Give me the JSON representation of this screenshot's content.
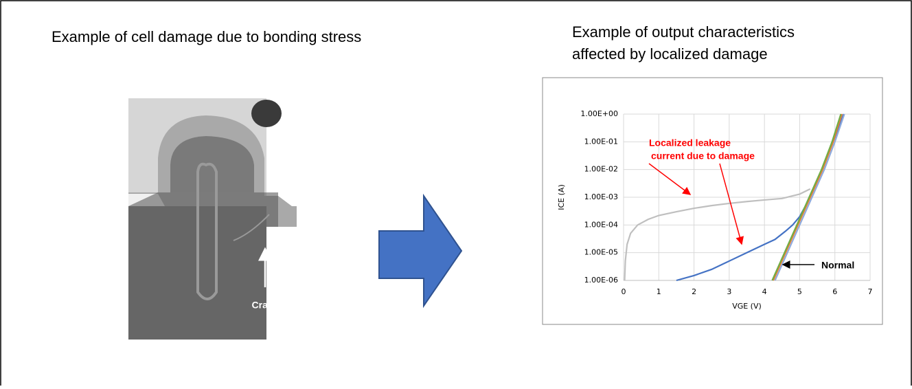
{
  "left": {
    "title": "Example of cell damage due to bonding stress",
    "annotation": "Crack"
  },
  "right": {
    "title": [
      "Example of output characteristics",
      "affected by localized damage"
    ]
  },
  "chart_data": {
    "type": "line",
    "yscale": "log",
    "grid": true,
    "xlabel": "VGE (V)",
    "ylabel": "ICE (A)",
    "xlim": [
      0,
      7
    ],
    "xticks": [
      0,
      1,
      2,
      3,
      4,
      5,
      6,
      7
    ],
    "ylim": [
      1e-06,
      1
    ],
    "yticks": [
      {
        "value": 1e-06,
        "label": "1.00E-06"
      },
      {
        "value": 1e-05,
        "label": "1.00E-05"
      },
      {
        "value": 0.0001,
        "label": "1.00E-04"
      },
      {
        "value": 0.001,
        "label": "1.00E-03"
      },
      {
        "value": 0.01,
        "label": "1.00E-02"
      },
      {
        "value": 0.1,
        "label": "1.00E-01"
      },
      {
        "value": 1,
        "label": "1.00E+00"
      }
    ],
    "series": [
      {
        "color": "#bfbfbf",
        "x": [
          0.03,
          0.05,
          0.1,
          0.2,
          0.4,
          0.7,
          1,
          1.5,
          2,
          2.5,
          3,
          3.5,
          4,
          4.5,
          5,
          5.3
        ],
        "values": [
          1e-06,
          5e-06,
          2e-05,
          5e-05,
          0.0001,
          0.00016,
          0.00022,
          0.0003,
          0.0004,
          0.0005,
          0.0006,
          0.0007,
          0.0008,
          0.0009,
          0.0013,
          0.002
        ]
      },
      {
        "color": "#4472c4",
        "x": [
          1.5,
          2,
          2.5,
          3,
          3.5,
          4,
          4.3,
          4.6,
          4.8,
          5,
          5.3,
          5.65,
          5.95,
          6.25
        ],
        "values": [
          1e-06,
          1.5e-06,
          2.5e-06,
          5e-06,
          1e-05,
          2e-05,
          3e-05,
          6e-05,
          0.0001,
          0.0002,
          0.001,
          0.01,
          0.1,
          1
        ]
      },
      {
        "color": "#ed7d31",
        "x": [
          4.25,
          4.6,
          4.95,
          5.3,
          5.65,
          5.95,
          6.2
        ],
        "values": [
          1e-06,
          1e-05,
          0.0001,
          0.001,
          0.01,
          0.1,
          1
        ]
      },
      {
        "color": "#70ad47",
        "x": [
          4.22,
          4.57,
          4.92,
          5.27,
          5.62,
          5.92,
          6.17
        ],
        "values": [
          1e-06,
          1e-05,
          0.0001,
          0.001,
          0.01,
          0.1,
          1
        ]
      },
      {
        "color": "#8faadc",
        "x": [
          4.3,
          4.65,
          5,
          5.35,
          5.7,
          6,
          6.27
        ],
        "values": [
          1e-06,
          1e-05,
          0.0001,
          0.001,
          0.01,
          0.1,
          1
        ]
      }
    ],
    "annotations": [
      {
        "lines": [
          "Localized leakage",
          "current due to damage"
        ],
        "color": "#ff0000"
      },
      {
        "lines": [
          "Normal"
        ],
        "color": "#000000"
      }
    ]
  }
}
